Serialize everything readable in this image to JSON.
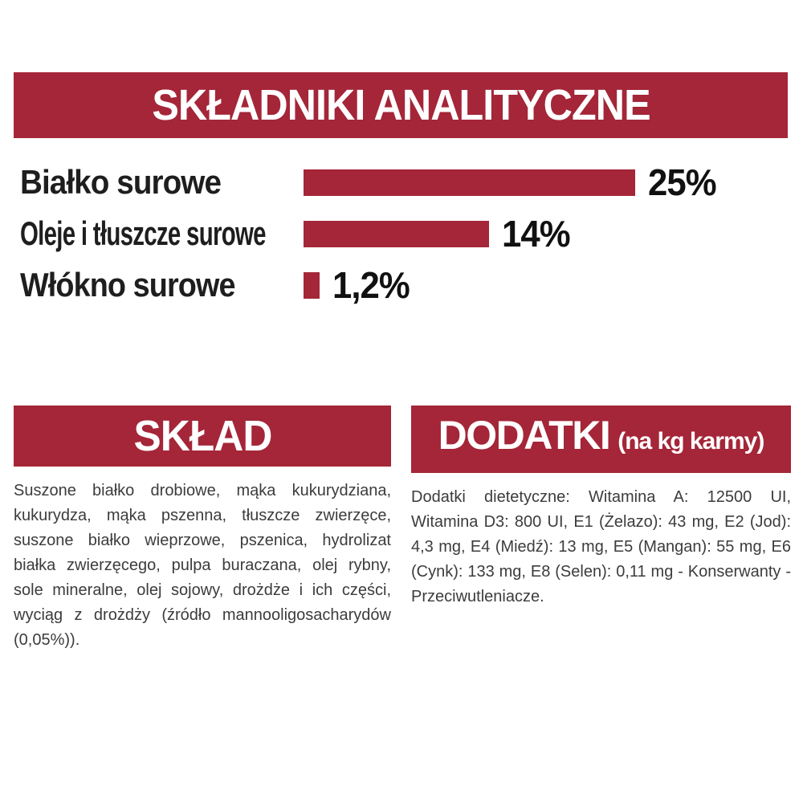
{
  "page": {
    "background": "#ffffff",
    "accent_red": "#A42638",
    "body_text_color": "#3c3c3c"
  },
  "analytics_header": {
    "title": "SKŁADNIKI ANALITYCZNE"
  },
  "chart_data": {
    "type": "bar",
    "orientation": "horizontal",
    "title": "SKŁADNIKI ANALITYCZNE",
    "categories": [
      "Białko surowe",
      "Oleje i tłuszcze surowe",
      "Włókno surowe"
    ],
    "values": [
      25,
      14,
      1.2
    ],
    "value_labels": [
      "25%",
      "14%",
      "1,2%"
    ],
    "unit": "%",
    "xlim": [
      0,
      25
    ],
    "bar_color": "#A42638",
    "grid": false,
    "legend": false
  },
  "sklad": {
    "title": "SKŁAD",
    "body": "Suszone białko drobiowe, mąka kukurydziana, kukurydza, mąka pszenna, tłuszcze zwierzęce, suszone białko wieprzowe, pszenica, hydrolizat białka zwierzęcego, pulpa buraczana, olej rybny, sole mineralne, olej sojowy, drożdże i ich części, wyciąg z drożdży (źródło mannooligosacharydów (0,05%))."
  },
  "dodatki": {
    "title": "DODATKI",
    "subtitle": "(na kg karmy)",
    "body": "Dodatki dietetyczne: Witamina A: 12500 UI, Witamina D3: 800 UI, E1 (Żelazo): 43 mg, E2 (Jod): 4,3 mg, E4 (Miedź): 13 mg, E5 (Mangan): 55 mg, E6 (Cynk): 133 mg, E8 (Selen): 0,11 mg - Konserwanty - Przeciwutleniacze."
  }
}
